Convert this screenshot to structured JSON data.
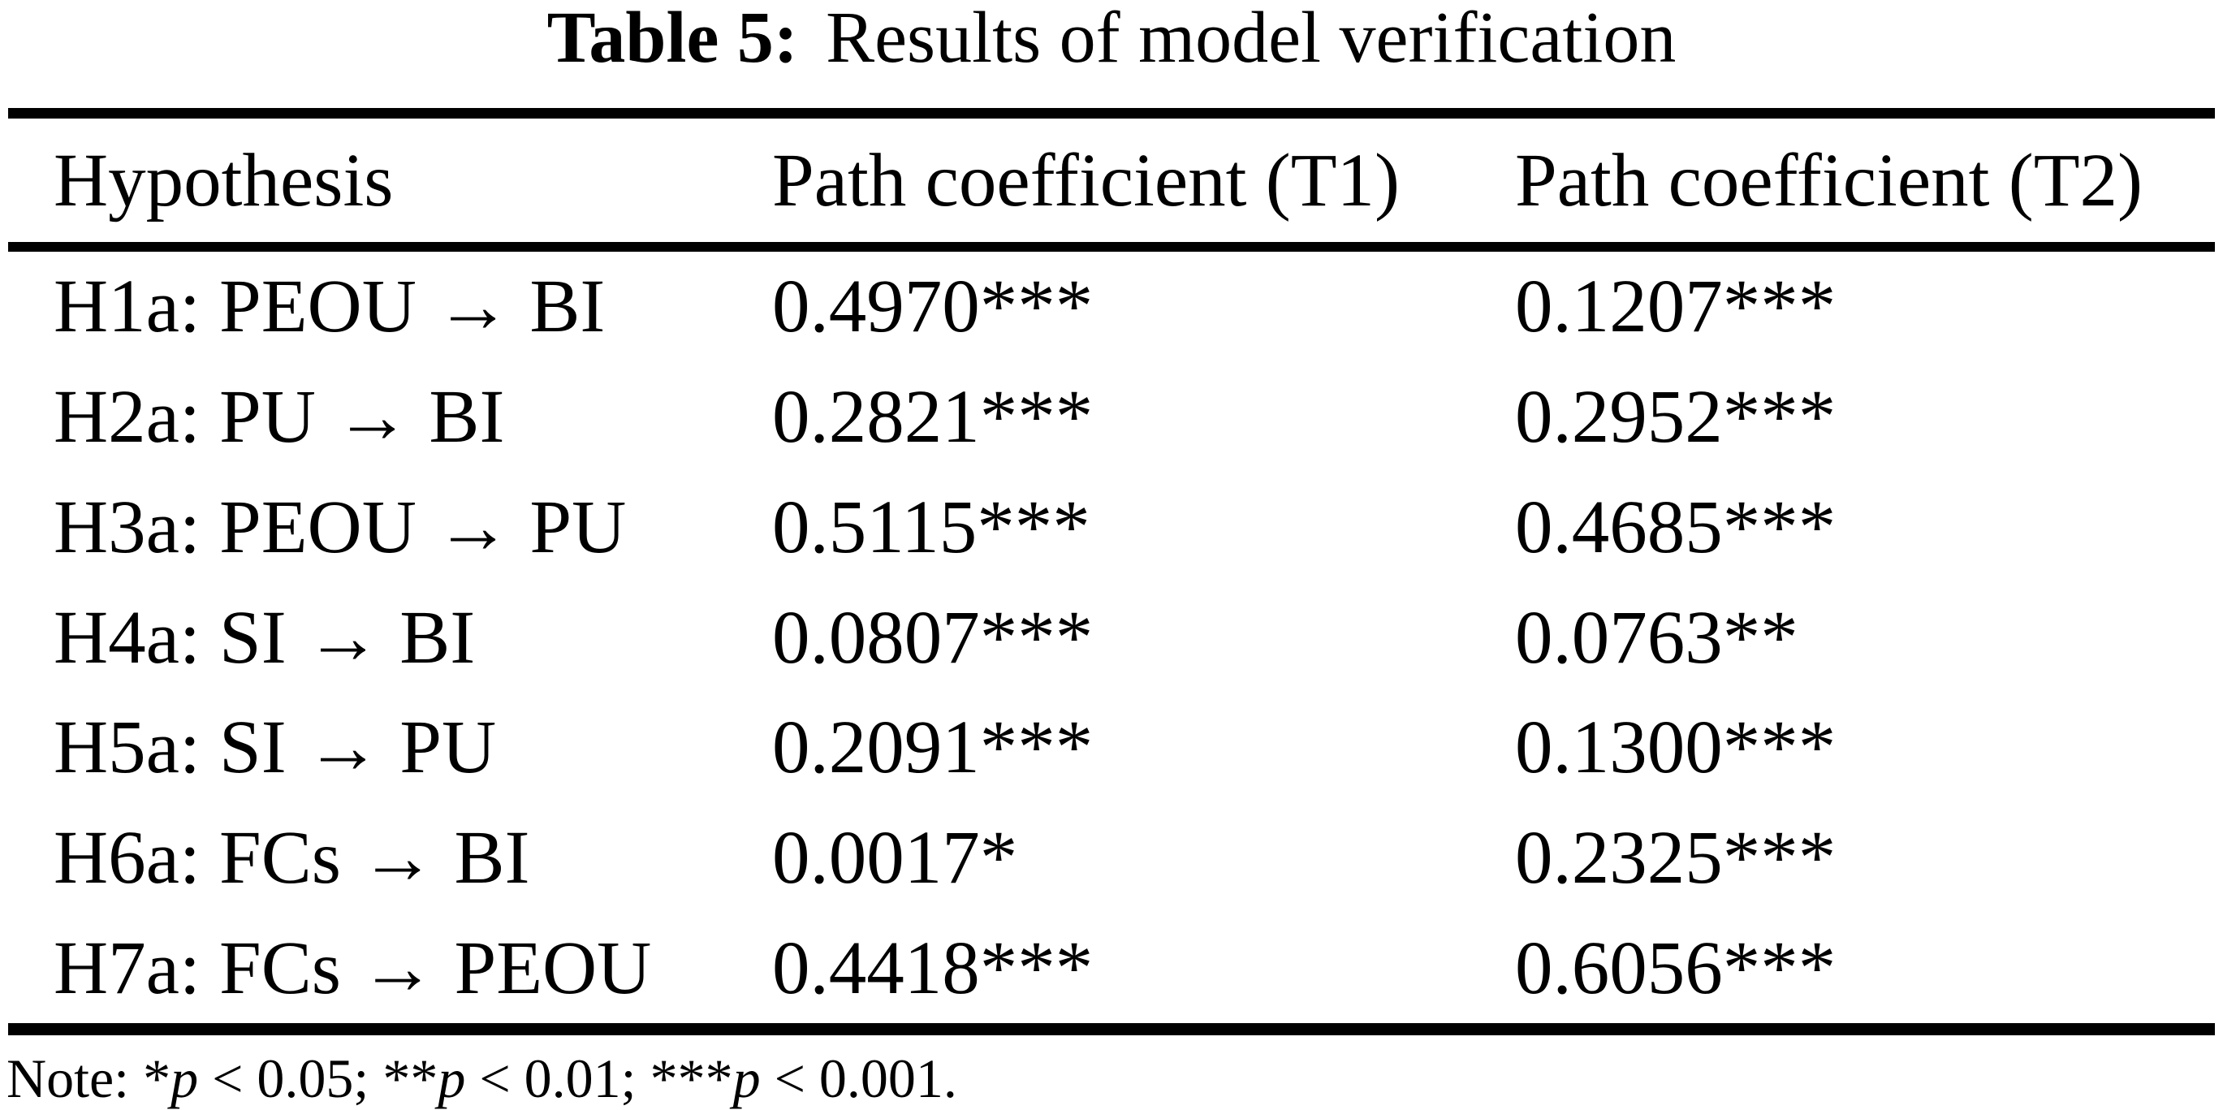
{
  "caption": {
    "label": "Table 5:",
    "text": "Results of model verification"
  },
  "table": {
    "columns": [
      "Hypothesis",
      "Path coefficient (T1)",
      "Path coefficient (T2)"
    ],
    "rows": [
      {
        "hypothesis": "H1a: PEOU → BI",
        "t1": "0.4970***",
        "t2": "0.1207***"
      },
      {
        "hypothesis": "H2a: PU → BI",
        "t1": "0.2821***",
        "t2": "0.2952***"
      },
      {
        "hypothesis": "H3a: PEOU → PU",
        "t1": "0.5115***",
        "t2": "0.4685***"
      },
      {
        "hypothesis": "H4a: SI → BI",
        "t1": "0.0807***",
        "t2": "0.0763**"
      },
      {
        "hypothesis": "H5a: SI → PU",
        "t1": "0.2091***",
        "t2": "0.1300***"
      },
      {
        "hypothesis": "H6a: FCs → BI",
        "t1": "0.0017*",
        "t2": "0.2325***"
      },
      {
        "hypothesis": "H7a: FCs → PEOU",
        "t1": "0.4418***",
        "t2": "0.6056***"
      }
    ]
  },
  "note": {
    "segments": [
      {
        "text": "Note: *"
      },
      {
        "text": "p",
        "italic": true
      },
      {
        "text": " < 0.05; **"
      },
      {
        "text": "p",
        "italic": true
      },
      {
        "text": " < 0.01; ***"
      },
      {
        "text": "p",
        "italic": true
      },
      {
        "text": " < 0.001."
      }
    ]
  },
  "colors": {
    "text": "#000000",
    "background": "#ffffff",
    "rule": "#000000"
  }
}
